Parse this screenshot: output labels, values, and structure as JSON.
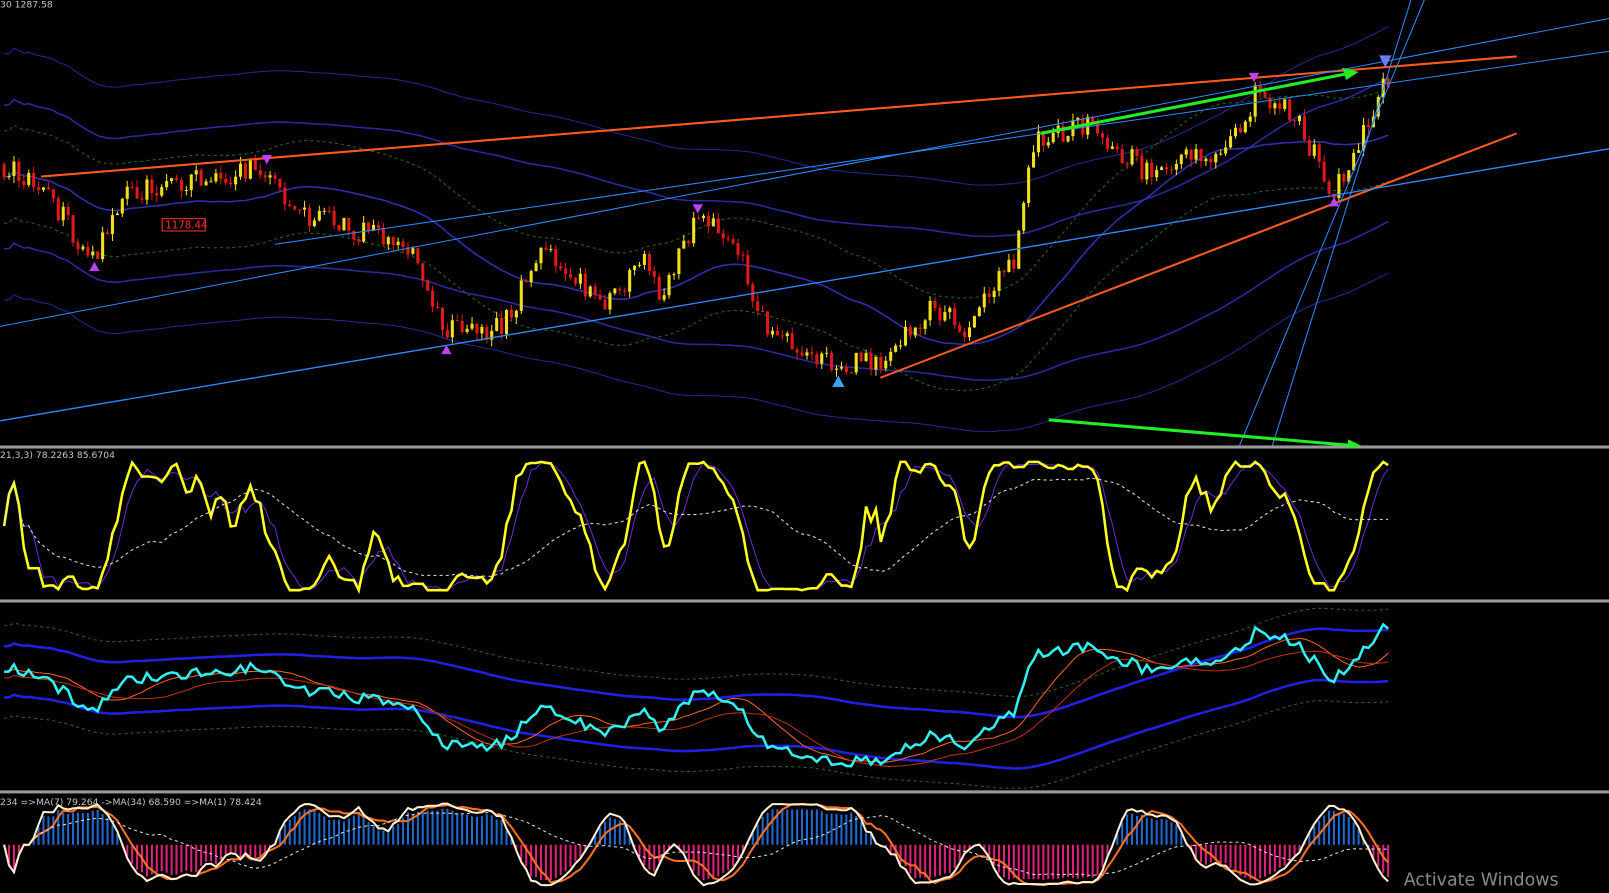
{
  "main": {
    "header": "30 1287.58",
    "price_tag": "1178.44"
  },
  "stochastic": {
    "header": "21,3,3) 78.2263 85.6704"
  },
  "histogram": {
    "header": "234 =>MA(7) 79.264 ->MA(34) 68.590 =>MA(1) 78.424"
  },
  "watermark": "Activate Windows"
}
